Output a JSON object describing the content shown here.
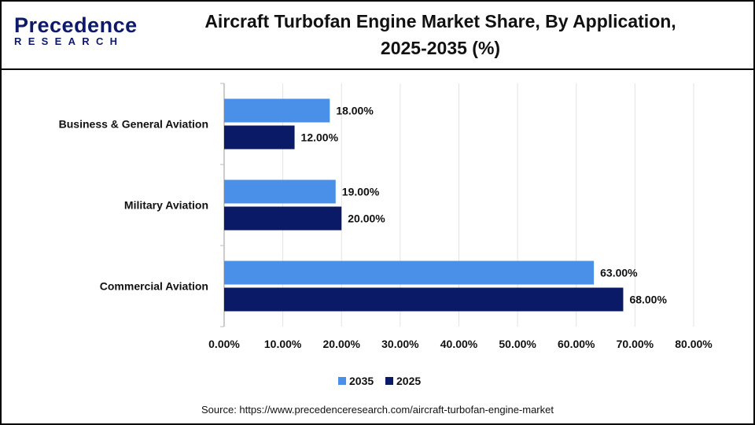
{
  "logo": {
    "line1": "Precedence",
    "line2": "RESEARCH"
  },
  "title_line1": "Aircraft Turbofan Engine Market Share, By Application,",
  "title_line2": "2025-2035 (%)",
  "source": "Source: https://www.precedenceresearch.com/aircraft-turbofan-engine-market",
  "chart_data": {
    "type": "bar",
    "orientation": "horizontal",
    "categories": [
      "Business & General Aviation",
      "Military Aviation",
      "Commercial Aviation"
    ],
    "series": [
      {
        "name": "2035",
        "color": "#4a90e8",
        "values": [
          18,
          19,
          63
        ],
        "labels": [
          "18.00%",
          "19.00%",
          "63.00%"
        ]
      },
      {
        "name": "2025",
        "color": "#0a1a66",
        "values": [
          12,
          20,
          68
        ],
        "labels": [
          "12.00%",
          "20.00%",
          "68.00%"
        ]
      }
    ],
    "xlim": [
      0,
      80
    ],
    "xticks": [
      "0.00%",
      "10.00%",
      "20.00%",
      "30.00%",
      "40.00%",
      "50.00%",
      "60.00%",
      "70.00%",
      "80.00%"
    ],
    "grid": true,
    "legend": "bottom"
  }
}
